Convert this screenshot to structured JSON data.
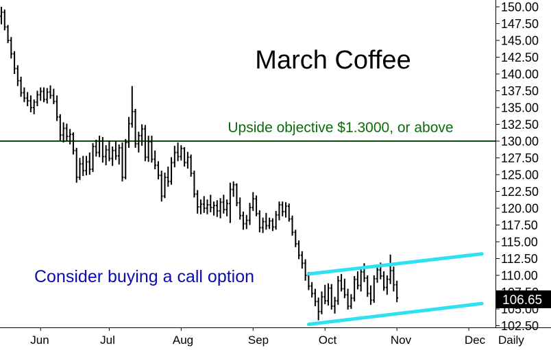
{
  "chart_data": {
    "type": "ohlc",
    "title": "March Coffee",
    "period_label": "Daily",
    "x_tick_labels": [
      "Jun",
      "Jul",
      "Aug",
      "Sep",
      "Oct",
      "Nov",
      "Dec"
    ],
    "y_ticks": [
      102.5,
      105.0,
      107.5,
      110.0,
      112.5,
      115.0,
      117.5,
      120.0,
      122.5,
      125.0,
      127.5,
      130.0,
      132.5,
      135.0,
      137.5,
      140.0,
      142.5,
      145.0,
      147.5,
      150.0
    ],
    "ylim": [
      102.5,
      150.5
    ],
    "last_price": "106.65",
    "objective_line": {
      "value": 130.0,
      "color": "#0b4d0b"
    },
    "annotations": {
      "objective_text": "Upside objective $1.3000, or above",
      "advice_text": "Consider buying a call option"
    },
    "channel": {
      "color": "#2fe0f0",
      "upper": [
        [
          94,
          110.2
        ],
        [
          147,
          113.2
        ]
      ],
      "lower": [
        [
          94,
          102.7
        ],
        [
          147,
          105.8
        ]
      ]
    },
    "bar_color": "#000000",
    "bars": [
      [
        148.6,
        150.0,
        147.4,
        149.2
      ],
      [
        149.2,
        149.6,
        146.5,
        147.0
      ],
      [
        147.0,
        147.3,
        144.6,
        145.0
      ],
      [
        145.0,
        145.5,
        142.3,
        143.0
      ],
      [
        143.0,
        143.4,
        140.0,
        140.8
      ],
      [
        140.8,
        141.3,
        138.2,
        139.0
      ],
      [
        139.0,
        139.6,
        136.6,
        137.2
      ],
      [
        137.2,
        138.0,
        135.8,
        136.4
      ],
      [
        136.4,
        137.3,
        135.2,
        136.0
      ],
      [
        136.0,
        136.8,
        134.3,
        135.0
      ],
      [
        135.0,
        136.2,
        134.0,
        135.8
      ],
      [
        135.8,
        137.5,
        135.2,
        136.9
      ],
      [
        136.9,
        138.0,
        136.0,
        137.4
      ],
      [
        137.4,
        138.0,
        135.8,
        136.2
      ],
      [
        136.2,
        137.9,
        135.6,
        137.3
      ],
      [
        137.3,
        138.3,
        136.3,
        136.8
      ],
      [
        136.8,
        137.8,
        135.5,
        135.9
      ],
      [
        135.9,
        136.8,
        133.0,
        133.6
      ],
      [
        133.6,
        134.0,
        130.1,
        130.9
      ],
      [
        130.9,
        132.8,
        129.8,
        131.9
      ],
      [
        131.9,
        132.6,
        130.0,
        130.7
      ],
      [
        130.7,
        131.8,
        129.5,
        131.0
      ],
      [
        131.0,
        131.3,
        128.0,
        128.6
      ],
      [
        128.6,
        129.0,
        123.8,
        124.6
      ],
      [
        124.6,
        127.5,
        124.2,
        126.6
      ],
      [
        126.6,
        127.8,
        124.8,
        125.6
      ],
      [
        125.6,
        127.8,
        124.9,
        126.9
      ],
      [
        126.9,
        128.3,
        125.0,
        125.8
      ],
      [
        125.8,
        129.7,
        125.4,
        129.2
      ],
      [
        129.2,
        130.2,
        127.7,
        128.3
      ],
      [
        128.3,
        130.8,
        127.6,
        130.0
      ],
      [
        130.0,
        130.6,
        126.8,
        127.7
      ],
      [
        127.7,
        129.4,
        126.4,
        128.7
      ],
      [
        128.7,
        130.1,
        127.0,
        127.4
      ],
      [
        127.4,
        129.2,
        126.3,
        128.6
      ],
      [
        128.6,
        130.0,
        127.2,
        127.8
      ],
      [
        127.8,
        129.5,
        126.5,
        129.0
      ],
      [
        129.0,
        129.8,
        124.0,
        124.6
      ],
      [
        124.6,
        130.3,
        124.3,
        129.8
      ],
      [
        129.8,
        133.6,
        129.0,
        132.6
      ],
      [
        132.6,
        138.2,
        132.0,
        134.4
      ],
      [
        134.4,
        134.8,
        129.0,
        129.6
      ],
      [
        129.6,
        131.4,
        128.3,
        130.8
      ],
      [
        130.8,
        132.5,
        129.3,
        131.8
      ],
      [
        131.8,
        132.4,
        127.0,
        127.6
      ],
      [
        127.6,
        130.8,
        126.9,
        129.9
      ],
      [
        129.9,
        130.8,
        126.8,
        127.3
      ],
      [
        127.3,
        128.6,
        125.8,
        126.4
      ],
      [
        126.4,
        127.0,
        124.3,
        124.9
      ],
      [
        124.9,
        125.6,
        121.0,
        121.8
      ],
      [
        121.8,
        125.3,
        121.5,
        124.6
      ],
      [
        124.6,
        126.2,
        123.2,
        124.0
      ],
      [
        124.0,
        127.6,
        123.5,
        126.8
      ],
      [
        126.8,
        129.3,
        126.1,
        128.3
      ],
      [
        128.3,
        129.8,
        127.0,
        127.7
      ],
      [
        127.7,
        129.4,
        127.1,
        128.9
      ],
      [
        128.9,
        129.1,
        126.2,
        126.8
      ],
      [
        126.8,
        128.4,
        125.9,
        127.6
      ],
      [
        127.6,
        128.0,
        124.7,
        125.2
      ],
      [
        125.2,
        125.6,
        121.6,
        122.1
      ],
      [
        122.1,
        122.7,
        119.2,
        120.2
      ],
      [
        120.2,
        121.3,
        119.1,
        120.6
      ],
      [
        120.6,
        121.8,
        119.3,
        120.0
      ],
      [
        120.0,
        121.3,
        119.1,
        120.5
      ],
      [
        120.5,
        122.0,
        119.4,
        120.1
      ],
      [
        120.1,
        121.0,
        118.9,
        120.4
      ],
      [
        120.4,
        121.2,
        118.7,
        119.6
      ],
      [
        119.6,
        121.5,
        118.5,
        120.9
      ],
      [
        120.9,
        122.0,
        119.2,
        119.8
      ],
      [
        119.8,
        121.3,
        118.8,
        120.7
      ],
      [
        120.7,
        123.8,
        117.8,
        122.8
      ],
      [
        122.8,
        124.0,
        121.7,
        123.5
      ],
      [
        123.5,
        123.7,
        120.3,
        120.8
      ],
      [
        120.8,
        121.6,
        118.3,
        118.9
      ],
      [
        118.9,
        119.5,
        116.8,
        117.7
      ],
      [
        117.7,
        119.0,
        116.9,
        118.2
      ],
      [
        118.2,
        120.8,
        117.5,
        120.1
      ],
      [
        120.1,
        122.4,
        119.6,
        121.4
      ],
      [
        121.4,
        121.9,
        118.8,
        119.2
      ],
      [
        119.2,
        119.7,
        116.4,
        117.1
      ],
      [
        117.1,
        118.6,
        116.3,
        118.0
      ],
      [
        118.0,
        119.3,
        116.8,
        117.4
      ],
      [
        117.4,
        118.6,
        116.9,
        118.1
      ],
      [
        118.1,
        118.5,
        116.6,
        117.2
      ],
      [
        117.2,
        119.6,
        116.8,
        119.0
      ],
      [
        119.0,
        121.0,
        118.2,
        120.5
      ],
      [
        120.5,
        121.0,
        118.8,
        119.5
      ],
      [
        119.5,
        120.9,
        118.6,
        120.3
      ],
      [
        120.3,
        120.7,
        118.0,
        118.4
      ],
      [
        118.4,
        118.9,
        115.9,
        116.4
      ],
      [
        116.4,
        116.8,
        114.2,
        114.7
      ],
      [
        114.7,
        115.2,
        112.4,
        113.0
      ],
      [
        113.0,
        113.6,
        111.0,
        111.8
      ],
      [
        111.8,
        112.4,
        109.2,
        110.0
      ],
      [
        110.0,
        110.5,
        107.8,
        108.4
      ],
      [
        108.4,
        109.0,
        106.7,
        107.3
      ],
      [
        107.3,
        108.0,
        105.4,
        106.1
      ],
      [
        106.1,
        106.7,
        103.3,
        104.6
      ],
      [
        104.6,
        107.6,
        104.2,
        106.8
      ],
      [
        106.8,
        108.6,
        105.7,
        106.2
      ],
      [
        106.2,
        108.8,
        105.5,
        108.1
      ],
      [
        108.1,
        108.7,
        104.9,
        105.4
      ],
      [
        105.4,
        106.8,
        104.3,
        106.2
      ],
      [
        106.2,
        109.9,
        105.6,
        109.2
      ],
      [
        109.2,
        110.2,
        107.6,
        108.0
      ],
      [
        108.0,
        109.5,
        106.6,
        107.1
      ],
      [
        107.1,
        108.0,
        104.9,
        105.4
      ],
      [
        105.4,
        107.2,
        105.0,
        106.6
      ],
      [
        106.6,
        109.9,
        106.1,
        109.4
      ],
      [
        109.4,
        110.6,
        107.9,
        108.5
      ],
      [
        108.5,
        111.1,
        107.6,
        110.5
      ],
      [
        110.5,
        111.8,
        109.0,
        109.6
      ],
      [
        109.6,
        110.0,
        106.8,
        107.3
      ],
      [
        107.3,
        108.5,
        105.6,
        106.3
      ],
      [
        106.3,
        110.0,
        105.9,
        109.5
      ],
      [
        109.5,
        111.4,
        108.9,
        110.8
      ],
      [
        110.8,
        111.9,
        109.4,
        109.9
      ],
      [
        109.9,
        110.6,
        107.7,
        108.2
      ],
      [
        108.2,
        110.0,
        107.1,
        109.4
      ],
      [
        109.4,
        113.1,
        108.7,
        110.7
      ],
      [
        110.7,
        111.3,
        107.6,
        108.6
      ],
      [
        108.6,
        109.2,
        106.0,
        106.65
      ]
    ]
  }
}
